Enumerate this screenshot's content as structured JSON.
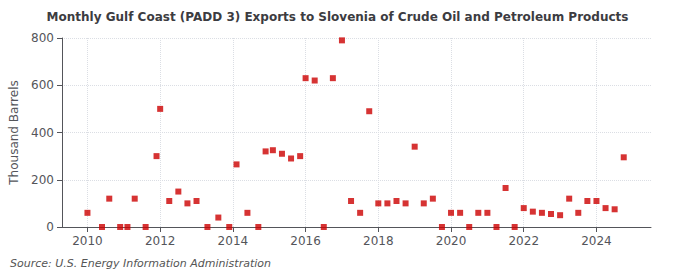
{
  "chart_data": {
    "type": "scatter",
    "title": "Monthly Gulf Coast (PADD 3) Exports to Slovenia of Crude Oil and Petroleum Products",
    "ylabel": "Thousand Barrels",
    "annotations": [
      "Source: U.S. Energy Information Administration"
    ],
    "color": "#cc0000",
    "marker": "square",
    "grid": true,
    "xlim": [
      2009.3,
      2025.5
    ],
    "xticks": [
      2010,
      2012,
      2014,
      2016,
      2018,
      2020,
      2022,
      2024
    ],
    "ylim": [
      0,
      800
    ],
    "yticks": [
      0,
      200,
      400,
      600,
      800
    ],
    "x": [
      2010.0,
      2010.4,
      2010.6,
      2010.9,
      2011.1,
      2011.3,
      2011.6,
      2011.9,
      2012.0,
      2012.25,
      2012.5,
      2012.75,
      2013.0,
      2013.3,
      2013.6,
      2013.9,
      2014.1,
      2014.4,
      2014.7,
      2014.9,
      2015.1,
      2015.35,
      2015.6,
      2015.85,
      2016.0,
      2016.25,
      2016.5,
      2016.75,
      2017.0,
      2017.25,
      2017.5,
      2017.75,
      2018.0,
      2018.25,
      2018.5,
      2018.75,
      2019.0,
      2019.25,
      2019.5,
      2019.75,
      2020.0,
      2020.25,
      2020.5,
      2020.75,
      2021.0,
      2021.25,
      2021.5,
      2021.75,
      2022.0,
      2022.25,
      2022.5,
      2022.75,
      2023.0,
      2023.25,
      2023.5,
      2023.75,
      2024.0,
      2024.25,
      2024.5,
      2024.75
    ],
    "values": [
      60,
      0,
      120,
      0,
      0,
      120,
      0,
      300,
      500,
      110,
      150,
      100,
      110,
      0,
      40,
      0,
      265,
      60,
      0,
      320,
      325,
      310,
      290,
      300,
      630,
      620,
      0,
      630,
      790,
      110,
      60,
      490,
      100,
      100,
      110,
      100,
      340,
      100,
      120,
      0,
      60,
      60,
      0,
      60,
      60,
      0,
      165,
      0,
      80,
      65,
      60,
      55,
      50,
      120,
      60,
      110,
      110,
      80,
      75,
      295
    ]
  }
}
